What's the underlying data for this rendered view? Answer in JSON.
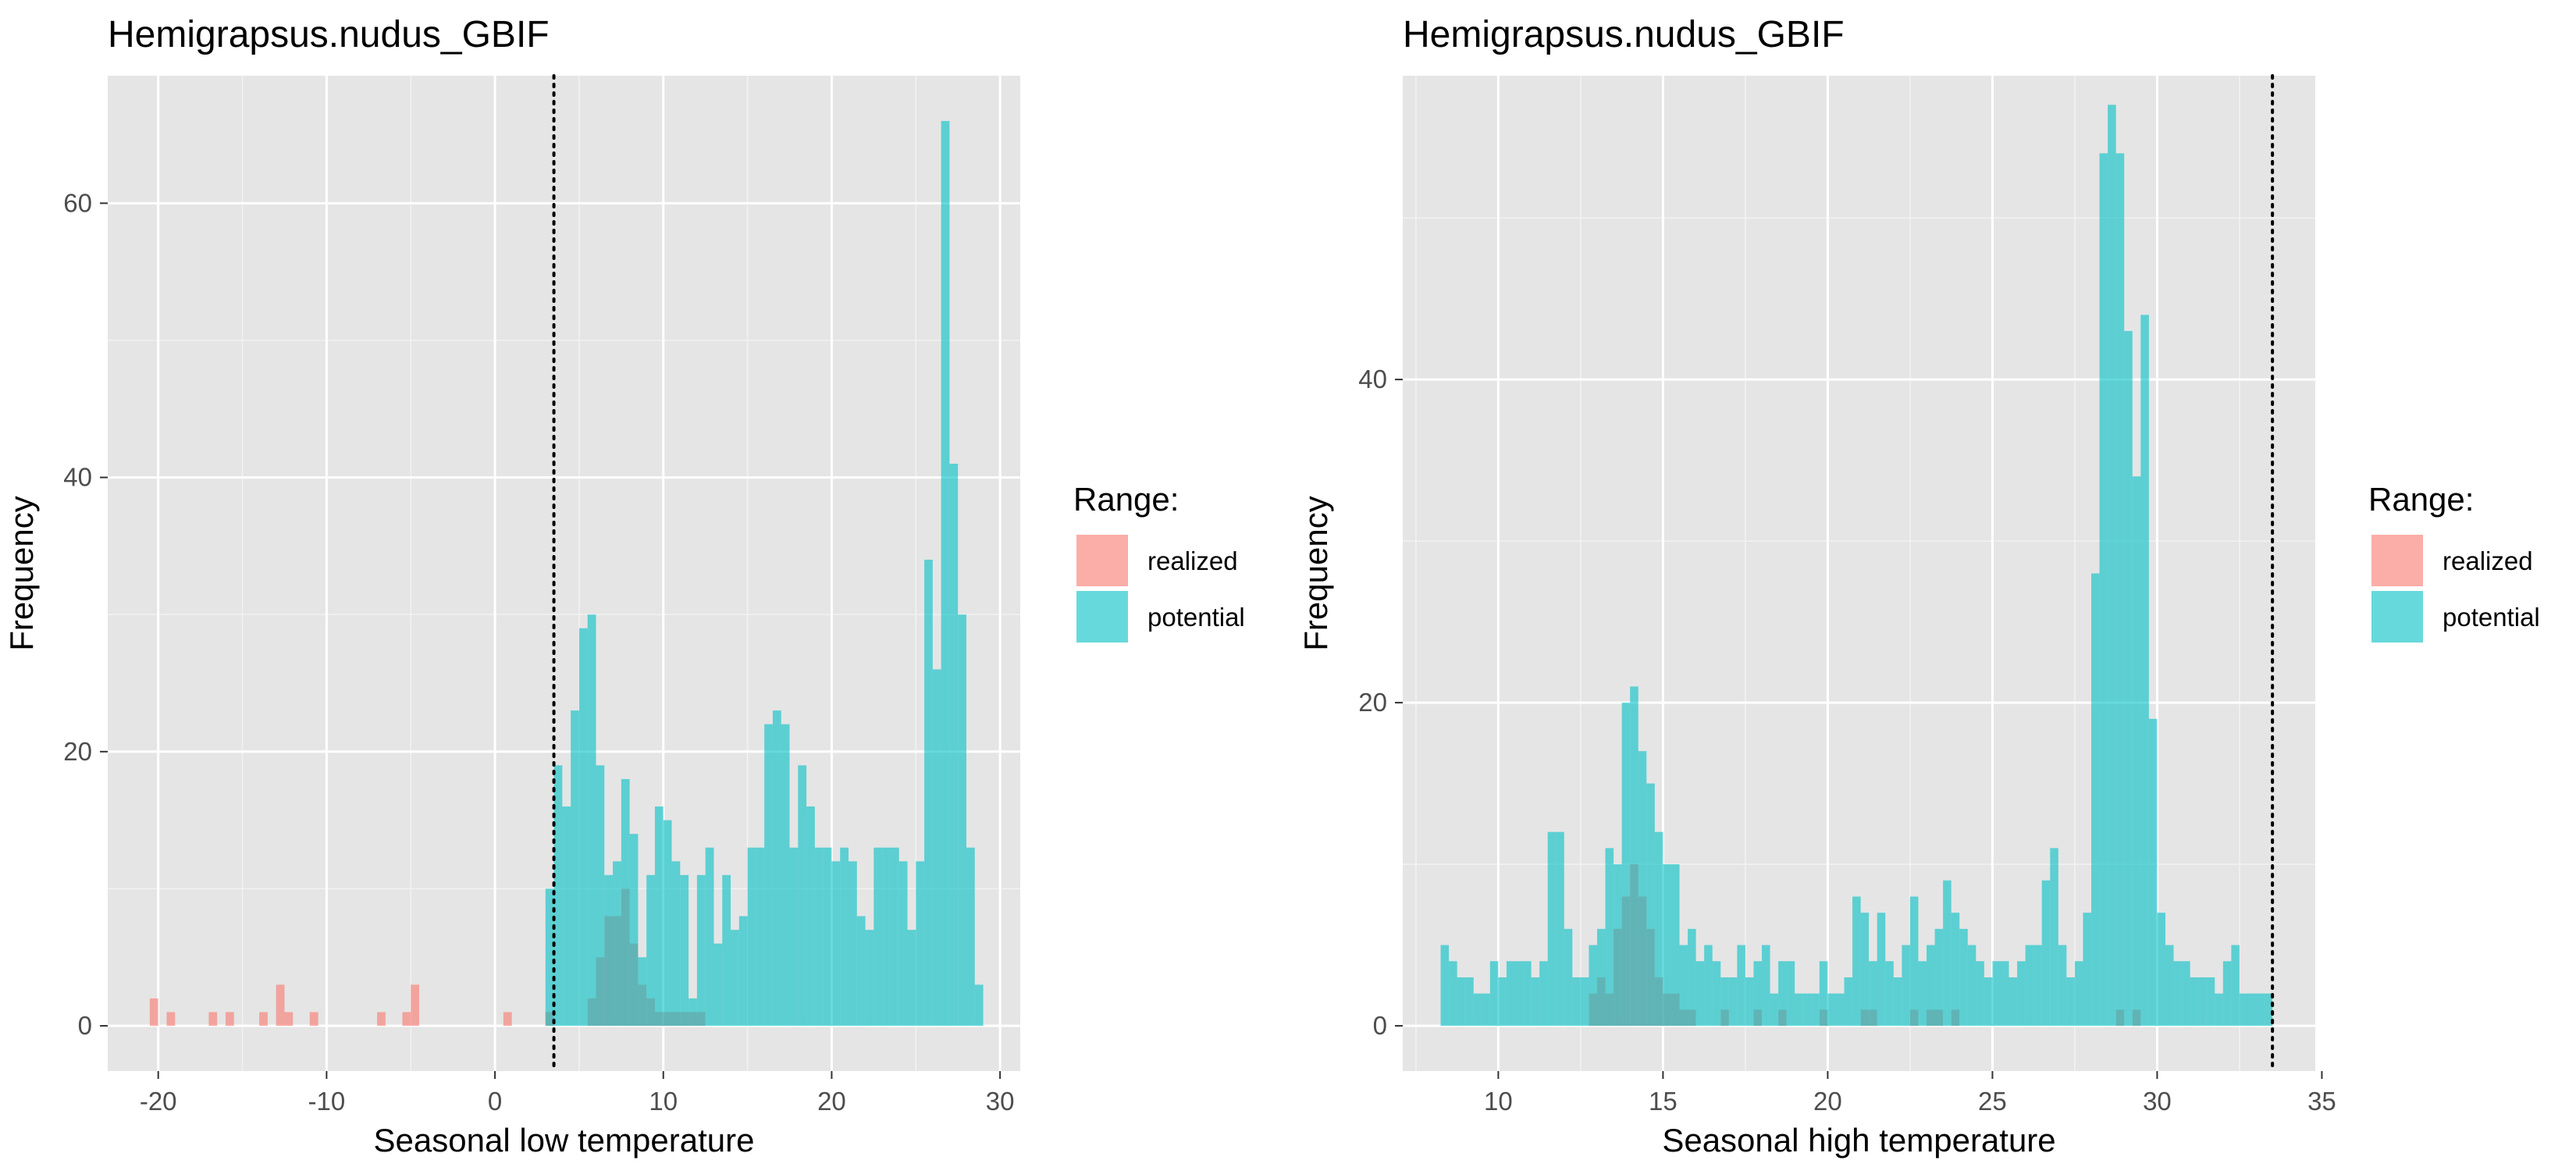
{
  "colors": {
    "panel_bg": "#E5E5E5",
    "grid_major": "#FFFFFF",
    "grid_minor": "#F2F2F2",
    "realized": "#F8766D",
    "potential": "#00BFC4",
    "fill_alpha": 0.6,
    "tick_text": "#4D4D4D",
    "vline": "#000000"
  },
  "chart_data": [
    {
      "type": "histogram",
      "title": "Hemigrapsus.nudus_GBIF",
      "xlabel": "Seasonal low temperature",
      "ylabel": "Frequency",
      "xlim": [
        -23,
        31.2
      ],
      "ylim": [
        -3.3,
        69.3
      ],
      "xticks": [
        -20,
        -10,
        0,
        10,
        20,
        30
      ],
      "xtick_labels": [
        "-20",
        "-10",
        "0",
        "10",
        "20",
        "30"
      ],
      "yticks": [
        0,
        20,
        40,
        60
      ],
      "ytick_labels": [
        "0",
        "20",
        "40",
        "60"
      ],
      "grid": true,
      "bin_width": 0.5,
      "vline_x": 3.5,
      "vline_style": "dotted",
      "legend": {
        "title": "Range:",
        "entries": [
          "realized",
          "potential"
        ],
        "position": "right"
      },
      "series": [
        {
          "name": "realized",
          "bins": [
            [
              -20.5,
              2
            ],
            [
              -19.5,
              1
            ],
            [
              -17,
              1
            ],
            [
              -16,
              1
            ],
            [
              -14,
              1
            ],
            [
              -13,
              3
            ],
            [
              -12.5,
              1
            ],
            [
              -11,
              1
            ],
            [
              -7,
              1
            ],
            [
              -5.5,
              1
            ],
            [
              -5,
              3
            ],
            [
              0.5,
              1
            ],
            [
              3,
              1
            ],
            [
              5.5,
              2
            ],
            [
              6,
              5
            ],
            [
              6.5,
              8
            ],
            [
              7,
              8
            ],
            [
              7.5,
              10
            ],
            [
              8,
              6
            ],
            [
              8.5,
              3
            ],
            [
              9,
              2
            ],
            [
              9.5,
              1
            ],
            [
              10,
              1
            ],
            [
              10.5,
              1
            ],
            [
              11,
              1
            ],
            [
              11.5,
              1
            ],
            [
              12,
              1
            ]
          ]
        },
        {
          "name": "potential",
          "bins": [
            [
              3,
              10
            ],
            [
              3.5,
              19
            ],
            [
              4,
              16
            ],
            [
              4.5,
              23
            ],
            [
              5,
              29
            ],
            [
              5.5,
              30
            ],
            [
              6,
              19
            ],
            [
              6.5,
              11
            ],
            [
              7,
              12
            ],
            [
              7.5,
              18
            ],
            [
              8,
              14
            ],
            [
              8.5,
              5
            ],
            [
              9,
              11
            ],
            [
              9.5,
              16
            ],
            [
              10,
              15
            ],
            [
              10.5,
              12
            ],
            [
              11,
              11
            ],
            [
              11.5,
              2
            ],
            [
              12,
              11
            ],
            [
              12.5,
              13
            ],
            [
              13,
              6
            ],
            [
              13.5,
              11
            ],
            [
              14,
              7
            ],
            [
              14.5,
              8
            ],
            [
              15,
              13
            ],
            [
              15.5,
              13
            ],
            [
              16,
              22
            ],
            [
              16.5,
              23
            ],
            [
              17,
              22
            ],
            [
              17.5,
              13
            ],
            [
              18,
              19
            ],
            [
              18.5,
              16
            ],
            [
              19,
              13
            ],
            [
              19.5,
              13
            ],
            [
              20,
              12
            ],
            [
              20.5,
              13
            ],
            [
              21,
              12
            ],
            [
              21.5,
              8
            ],
            [
              22,
              7
            ],
            [
              22.5,
              13
            ],
            [
              23,
              13
            ],
            [
              23.5,
              13
            ],
            [
              24,
              12
            ],
            [
              24.5,
              7
            ],
            [
              25,
              12
            ],
            [
              25.5,
              34
            ],
            [
              26,
              26
            ],
            [
              26.5,
              66
            ],
            [
              27,
              41
            ],
            [
              27.5,
              30
            ],
            [
              28,
              13
            ],
            [
              28.5,
              3
            ]
          ]
        }
      ]
    },
    {
      "type": "histogram",
      "title": "Hemigrapsus.nudus_GBIF",
      "xlabel": "Seasonal high temperature",
      "ylabel": "Frequency",
      "xlim": [
        7.1,
        34.8
      ],
      "ylim": [
        -2.8,
        58.8
      ],
      "xticks": [
        10,
        15,
        20,
        25,
        30,
        35
      ],
      "xtick_labels": [
        "10",
        "15",
        "20",
        "25",
        "30",
        "35"
      ],
      "yticks": [
        0,
        20,
        40
      ],
      "ytick_labels": [
        "0",
        "20",
        "40"
      ],
      "grid": true,
      "bin_width": 0.25,
      "vline_x": 33.5,
      "vline_style": "dotted",
      "legend": {
        "title": "Range:",
        "entries": [
          "realized",
          "potential"
        ],
        "position": "right"
      },
      "series": [
        {
          "name": "realized",
          "bins": [
            [
              12.75,
              2
            ],
            [
              13,
              3
            ],
            [
              13.25,
              2
            ],
            [
              13.5,
              6
            ],
            [
              13.75,
              8
            ],
            [
              14,
              10
            ],
            [
              14.25,
              8
            ],
            [
              14.5,
              6
            ],
            [
              14.75,
              3
            ],
            [
              15,
              2
            ],
            [
              15.25,
              2
            ],
            [
              15.5,
              1
            ],
            [
              15.75,
              1
            ],
            [
              16.75,
              1
            ],
            [
              17.75,
              1
            ],
            [
              18.5,
              1
            ],
            [
              19.75,
              1
            ],
            [
              21,
              1
            ],
            [
              21.25,
              1
            ],
            [
              22.5,
              1
            ],
            [
              23,
              1
            ],
            [
              23.25,
              1
            ],
            [
              23.75,
              1
            ],
            [
              28.75,
              1
            ],
            [
              29.25,
              1
            ]
          ]
        },
        {
          "name": "potential",
          "bins": [
            [
              8.25,
              5
            ],
            [
              8.5,
              4
            ],
            [
              8.75,
              3
            ],
            [
              9,
              3
            ],
            [
              9.25,
              2
            ],
            [
              9.5,
              2
            ],
            [
              9.75,
              4
            ],
            [
              10,
              3
            ],
            [
              10.25,
              4
            ],
            [
              10.5,
              4
            ],
            [
              10.75,
              4
            ],
            [
              11,
              3
            ],
            [
              11.25,
              4
            ],
            [
              11.5,
              12
            ],
            [
              11.75,
              12
            ],
            [
              12,
              6
            ],
            [
              12.25,
              3
            ],
            [
              12.5,
              3
            ],
            [
              12.75,
              5
            ],
            [
              13,
              6
            ],
            [
              13.25,
              11
            ],
            [
              13.5,
              10
            ],
            [
              13.75,
              20
            ],
            [
              14,
              21
            ],
            [
              14.25,
              17
            ],
            [
              14.5,
              15
            ],
            [
              14.75,
              12
            ],
            [
              15,
              10
            ],
            [
              15.25,
              10
            ],
            [
              15.5,
              5
            ],
            [
              15.75,
              6
            ],
            [
              16,
              4
            ],
            [
              16.25,
              5
            ],
            [
              16.5,
              4
            ],
            [
              16.75,
              3
            ],
            [
              17,
              3
            ],
            [
              17.25,
              5
            ],
            [
              17.5,
              3
            ],
            [
              17.75,
              4
            ],
            [
              18,
              5
            ],
            [
              18.25,
              2
            ],
            [
              18.5,
              4
            ],
            [
              18.75,
              4
            ],
            [
              19,
              2
            ],
            [
              19.25,
              2
            ],
            [
              19.5,
              2
            ],
            [
              19.75,
              4
            ],
            [
              20,
              2
            ],
            [
              20.25,
              2
            ],
            [
              20.5,
              3
            ],
            [
              20.75,
              8
            ],
            [
              21,
              7
            ],
            [
              21.25,
              4
            ],
            [
              21.5,
              7
            ],
            [
              21.75,
              4
            ],
            [
              22,
              3
            ],
            [
              22.25,
              5
            ],
            [
              22.5,
              8
            ],
            [
              22.75,
              4
            ],
            [
              23,
              5
            ],
            [
              23.25,
              6
            ],
            [
              23.5,
              9
            ],
            [
              23.75,
              7
            ],
            [
              24,
              6
            ],
            [
              24.25,
              5
            ],
            [
              24.5,
              4
            ],
            [
              24.75,
              3
            ],
            [
              25,
              4
            ],
            [
              25.25,
              4
            ],
            [
              25.5,
              3
            ],
            [
              25.75,
              4
            ],
            [
              26,
              5
            ],
            [
              26.25,
              5
            ],
            [
              26.5,
              9
            ],
            [
              26.75,
              11
            ],
            [
              27,
              5
            ],
            [
              27.25,
              3
            ],
            [
              27.5,
              4
            ],
            [
              27.75,
              7
            ],
            [
              28,
              28
            ],
            [
              28.25,
              54
            ],
            [
              28.5,
              57
            ],
            [
              28.75,
              54
            ],
            [
              29,
              43
            ],
            [
              29.25,
              34
            ],
            [
              29.5,
              44
            ],
            [
              29.75,
              19
            ],
            [
              30,
              7
            ],
            [
              30.25,
              5
            ],
            [
              30.5,
              4
            ],
            [
              30.75,
              4
            ],
            [
              31,
              3
            ],
            [
              31.25,
              3
            ],
            [
              31.5,
              3
            ],
            [
              31.75,
              2
            ],
            [
              32,
              4
            ],
            [
              32.25,
              5
            ],
            [
              32.5,
              2
            ],
            [
              32.75,
              2
            ],
            [
              33,
              2
            ],
            [
              33.25,
              2
            ]
          ]
        }
      ]
    }
  ]
}
